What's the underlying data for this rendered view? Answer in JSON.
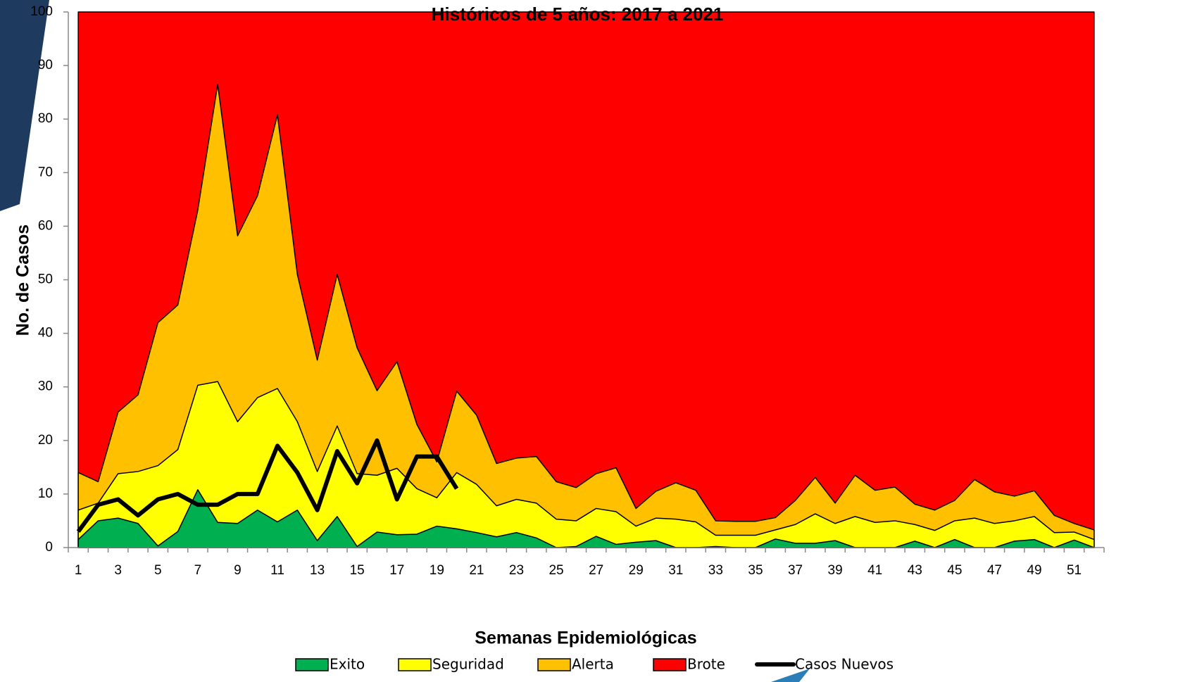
{
  "chart_data": {
    "type": "area",
    "title": "Históricos de 5 años: 2017 a 2021",
    "x_label": "Semanas Epidemiológicas",
    "y_label": "No. de Casos",
    "categories": [
      1,
      null,
      3,
      null,
      5,
      null,
      7,
      null,
      9,
      null,
      11,
      null,
      13,
      null,
      15,
      null,
      17,
      null,
      19,
      null,
      21,
      null,
      23,
      null,
      25,
      null,
      27,
      null,
      29,
      null,
      31,
      null,
      33,
      null,
      35,
      null,
      37,
      null,
      39,
      null,
      41,
      null,
      43,
      null,
      45,
      null,
      47,
      null,
      49,
      null,
      51,
      null
    ],
    "series": [
      {
        "name": "Exito",
        "color": "#00b050",
        "values": [
          1.5,
          5,
          5.5,
          4.5,
          0.3,
          3,
          10.8,
          4.7,
          4.5,
          7,
          4.8,
          7,
          1.3,
          5.8,
          0.2,
          2.9,
          2.4,
          2.5,
          4,
          3.5,
          2.8,
          2,
          2.8,
          1.8,
          0,
          0.2,
          2.1,
          0.6,
          1,
          1.3,
          0,
          0,
          0.2,
          0,
          0,
          1.6,
          0.8,
          0.8,
          1.3,
          0,
          0,
          0,
          1.2,
          0,
          1.5,
          0,
          0,
          1.2,
          1.5,
          0,
          1.4,
          0
        ]
      },
      {
        "name": "Seguridad",
        "color": "#ffff00",
        "values": [
          7,
          8.3,
          13.8,
          14.2,
          15.3,
          18.3,
          30.3,
          31,
          23.5,
          28,
          29.7,
          23.5,
          14.2,
          22.7,
          13.8,
          13.5,
          14.8,
          11,
          9.3,
          14,
          11.8,
          7.8,
          9,
          8.3,
          5.3,
          5,
          7.3,
          6.7,
          4,
          5.5,
          5.3,
          4.8,
          2.3,
          2.3,
          2.3,
          3.3,
          4.3,
          6.3,
          4.5,
          5.8,
          4.7,
          5,
          4.3,
          3.2,
          5,
          5.5,
          4.5,
          5,
          5.8,
          2.8,
          2.9,
          1.5
        ]
      },
      {
        "name": "Alerta",
        "color": "#ffc000",
        "values": [
          14,
          12.3,
          25.3,
          28.5,
          42,
          45.3,
          63,
          86.5,
          58.2,
          65.7,
          80.8,
          51,
          35,
          51,
          37.3,
          29.3,
          34.7,
          23,
          16,
          29.2,
          24.7,
          15.7,
          16.7,
          17,
          12.3,
          11.2,
          13.8,
          14.9,
          7.3,
          10.5,
          12.1,
          10.7,
          5,
          4.9,
          4.9,
          5.6,
          8.8,
          13.1,
          8.3,
          13.5,
          10.7,
          11.3,
          8.1,
          7,
          8.8,
          12.7,
          10.4,
          9.6,
          10.6,
          6,
          4.5,
          3.3
        ]
      },
      {
        "name": "Brote",
        "color": "#ff0000",
        "values": [
          100,
          100,
          100,
          100,
          100,
          100,
          100,
          100,
          100,
          100,
          100,
          100,
          100,
          100,
          100,
          100,
          100,
          100,
          100,
          100,
          100,
          100,
          100,
          100,
          100,
          100,
          100,
          100,
          100,
          100,
          100,
          100,
          100,
          100,
          100,
          100,
          100,
          100,
          100,
          100,
          100,
          100,
          100,
          100,
          100,
          100,
          100,
          100,
          100,
          100,
          100,
          100
        ]
      },
      {
        "name": "Casos Nuevos",
        "color": "#000000",
        "line": true,
        "values": [
          3,
          8,
          9,
          6,
          9,
          10,
          8,
          8,
          10,
          10,
          19,
          14,
          7,
          18,
          12,
          20,
          9,
          17,
          17,
          11,
          null,
          null,
          null,
          null,
          null,
          null,
          null,
          null,
          null,
          null,
          null,
          null,
          null,
          null,
          null,
          null,
          null,
          null,
          null,
          null,
          null,
          null,
          null,
          null,
          null,
          null,
          null,
          null,
          null,
          null,
          null,
          null
        ]
      }
    ],
    "ylim": [
      0,
      100
    ],
    "yticks": [
      0,
      10,
      20,
      30,
      40,
      50,
      60,
      70,
      80,
      90,
      100
    ],
    "legend": "bottom"
  }
}
